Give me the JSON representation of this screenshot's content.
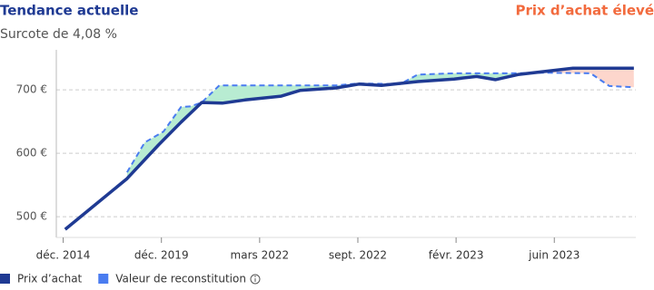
{
  "title": "Tendance actuelle",
  "subtitle": "Surcote de 4,08 %",
  "badge": "Prix d’achat élevé",
  "chart_data": {
    "type": "line",
    "xlim": [
      -0.07,
      5.83
    ],
    "ylim": [
      473,
      763
    ],
    "xticks": [
      {
        "value": 0,
        "label": "déc. 2014"
      },
      {
        "value": 1,
        "label": "déc. 2019"
      },
      {
        "value": 2,
        "label": "mars 2022"
      },
      {
        "value": 3,
        "label": "sept. 2022"
      },
      {
        "value": 4,
        "label": "févr. 2023"
      },
      {
        "value": 5,
        "label": "juin 2023"
      }
    ],
    "yticks": [
      {
        "value": 500,
        "label": "500 €"
      },
      {
        "value": 600,
        "label": "600 €"
      },
      {
        "value": 700,
        "label": "700 €"
      }
    ],
    "grid": true,
    "series": [
      {
        "name": "Prix d’achat",
        "color": "#1f3a93",
        "dash": false,
        "x": [
          0.02,
          0.28,
          0.65,
          0.97,
          1.2,
          1.41,
          1.62,
          1.85,
          2.22,
          2.41,
          2.78,
          3.01,
          3.24,
          3.61,
          3.98,
          4.21,
          4.4,
          4.63,
          4.91,
          5.19,
          5.81
        ],
        "values": [
          480,
          513,
          560,
          613,
          649,
          680,
          679,
          684,
          690,
          699,
          703,
          709,
          707,
          713,
          717,
          721,
          716,
          724,
          729,
          734,
          734
        ]
      },
      {
        "name": "Valeur de reconstitution",
        "color": "#4a7cf0",
        "dash": true,
        "x": [
          0.65,
          0.83,
          1.02,
          1.2,
          1.3,
          1.41,
          1.59,
          2.13,
          2.78,
          3.01,
          3.43,
          3.61,
          3.98,
          4.54,
          4.91,
          5.37,
          5.56,
          5.81
        ],
        "values": [
          570,
          617,
          634,
          673,
          674,
          680,
          707,
          707,
          707,
          710,
          709,
          724,
          726,
          726,
          727,
          726,
          706,
          704
        ]
      }
    ],
    "above_color": "#b8ecd2",
    "below_color": "#fdd6cc"
  }
}
